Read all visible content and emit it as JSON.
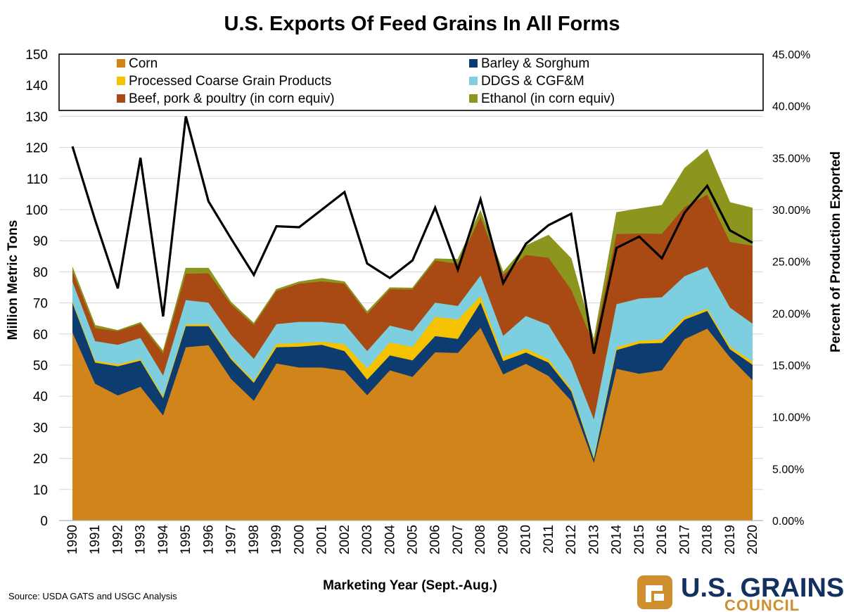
{
  "chart_data": {
    "type": "area",
    "stacked": true,
    "title": "U.S. Exports Of Feed Grains In All Forms",
    "xlabel": "Marketing Year (Sept.-Aug.)",
    "ylabel": "Million Metric Tons",
    "y2label": "Percent of Production Exported",
    "ylim": [
      0,
      150
    ],
    "y2lim": [
      0,
      45
    ],
    "y_ticks": [
      "0",
      "10",
      "20",
      "30",
      "40",
      "50",
      "60",
      "70",
      "80",
      "90",
      "100",
      "110",
      "120",
      "130",
      "140",
      "150"
    ],
    "y2_ticks": [
      "0.00%",
      "5.00%",
      "10.00%",
      "15.00%",
      "20.00%",
      "25.00%",
      "30.00%",
      "35.00%",
      "40.00%",
      "45.00%"
    ],
    "grid": true,
    "legend_position": "top",
    "categories": [
      "1990",
      "1991",
      "1992",
      "1993",
      "1994",
      "1995",
      "1996",
      "1997",
      "1998",
      "1999",
      "2000",
      "2001",
      "2002",
      "2003",
      "2004",
      "2005",
      "2006",
      "2007",
      "2008",
      "2009",
      "2010",
      "2011",
      "2012",
      "2013",
      "2014",
      "2015",
      "2016",
      "2017",
      "2018",
      "2019",
      "2020"
    ],
    "series": [
      {
        "name": "Corn",
        "color": "#d0841a",
        "values": [
          60.5,
          44,
          40.2,
          43,
          33.8,
          55.7,
          56.4,
          45.5,
          38.5,
          50.5,
          49.2,
          49.2,
          48.2,
          40.3,
          48.3,
          46.2,
          54.1,
          53.9,
          62,
          47,
          50.4,
          46.5,
          38.5,
          18.5,
          48.8,
          47.2,
          48.3,
          58.3,
          61.7,
          52.5,
          45.1
        ]
      },
      {
        "name": "Barley & Sorghum",
        "color": "#0c3c70",
        "values": [
          9.5,
          6.8,
          9.4,
          8.4,
          5.5,
          6.8,
          6.1,
          6.3,
          5.8,
          5.2,
          6.7,
          7.3,
          6.3,
          5,
          4.8,
          5.3,
          5.2,
          4.5,
          8.1,
          4.3,
          3.6,
          4.3,
          3.1,
          1.2,
          6,
          9.7,
          8.8,
          6.3,
          5.7,
          2.6,
          5
        ]
      },
      {
        "name": "Processed Coarse Grain Products",
        "color": "#f5c200",
        "values": [
          0.5,
          0.6,
          0.6,
          0.6,
          0.6,
          0.6,
          0.6,
          0.6,
          0.6,
          1.1,
          1.2,
          1,
          2.2,
          3.6,
          4.2,
          4.3,
          6.2,
          6.2,
          2.1,
          1.3,
          1.3,
          1,
          0.8,
          0.6,
          0.9,
          0.9,
          1.1,
          0.8,
          0.7,
          0.9,
          1
        ]
      },
      {
        "name": "DDGS & CGF&M",
        "color": "#7dcfe0",
        "values": [
          6.3,
          6.3,
          6.3,
          6.7,
          6.7,
          7.8,
          7,
          7.3,
          7.1,
          6.4,
          6.8,
          6.4,
          6.5,
          5.6,
          5.4,
          5.1,
          4.6,
          4.4,
          6.6,
          6.8,
          10.5,
          11.1,
          8.7,
          12.2,
          13.9,
          13.6,
          13.6,
          13.2,
          13.5,
          12.5,
          12.2
        ]
      },
      {
        "name": "Beef, pork & poultry (in corn equiv)",
        "color": "#a94a14",
        "values": [
          3.4,
          4.2,
          4.4,
          4.6,
          7.1,
          8.5,
          9.4,
          9.8,
          10.9,
          10.6,
          12.3,
          13,
          13,
          11.9,
          11.7,
          13.4,
          13.5,
          13.6,
          18.8,
          19.6,
          19.6,
          21.6,
          23.1,
          24.1,
          22.5,
          20.9,
          20.4,
          22.2,
          23.2,
          21.1,
          25.1
        ]
      },
      {
        "name": "Ethanol (in corn equiv)",
        "color": "#8c961f",
        "values": [
          1.3,
          0.9,
          0.3,
          0.4,
          0.8,
          1.8,
          1.7,
          0.7,
          0.6,
          0.6,
          0.6,
          1,
          0.6,
          0.8,
          0.5,
          0.5,
          0.6,
          1.4,
          2.1,
          0.9,
          3,
          7.3,
          10.1,
          1.6,
          7,
          8,
          9.2,
          12.5,
          14.6,
          12.7,
          12.1
        ]
      }
    ],
    "line_series": {
      "name": "Percent of Production Exported",
      "axis": "right",
      "color": "#000000",
      "values": [
        36.1,
        29,
        22.4,
        35,
        19.7,
        39,
        30.8,
        27.2,
        23.7,
        28.4,
        28.3,
        30,
        31.7,
        24.8,
        23.4,
        25.1,
        30.2,
        24.2,
        31,
        22.9,
        26.7,
        28.5,
        29.6,
        16.1,
        26.3,
        27.4,
        25.3,
        29.7,
        32.3,
        28,
        26.8
      ]
    },
    "source": "Source: USDA GATS and USGC Analysis",
    "logo": {
      "name": "U.S. GRAINS",
      "subname": "COUNCIL"
    }
  }
}
